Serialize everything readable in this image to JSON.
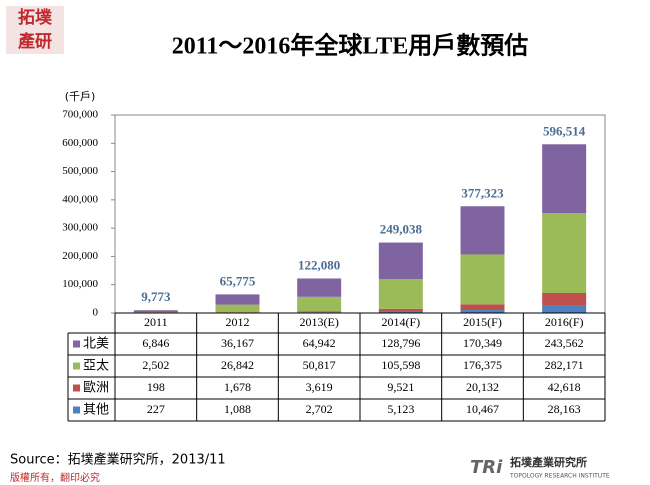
{
  "logo_text": [
    "拓墣",
    "產研"
  ],
  "brand": {
    "name": "拓墣產業研究所",
    "english": "TOPOLOGY RESEARCH INSTITUTE",
    "mark": "TRi"
  },
  "source": "Source：拓墣產業研究所，2013/11",
  "copyright": "版權所有，翻印必究",
  "chart_data": {
    "type": "stacked_bar",
    "title": "2011～2016年全球LTE用戶數預估",
    "y_label": "(千戶)",
    "categories": [
      "2011",
      "2012",
      "2013(E)",
      "2014(F)",
      "2015(F)",
      "2016(F)"
    ],
    "series": [
      {
        "name": "北美",
        "color": "#8064a2",
        "values": [
          6846,
          36167,
          64942,
          128796,
          170349,
          243562
        ],
        "value_labels": [
          "6,846",
          "36,167",
          "64,942",
          "128,796",
          "170,349",
          "243,562"
        ]
      },
      {
        "name": "亞太",
        "color": "#9bbb59",
        "values": [
          2502,
          26842,
          50817,
          105598,
          176375,
          282171
        ],
        "value_labels": [
          "2,502",
          "26,842",
          "50,817",
          "105,598",
          "176,375",
          "282,171"
        ]
      },
      {
        "name": "歐洲",
        "color": "#c0504d",
        "values": [
          198,
          1678,
          3619,
          9521,
          20132,
          42618
        ],
        "value_labels": [
          "198",
          "1,678",
          "3,619",
          "9,521",
          "20,132",
          "42,618"
        ]
      },
      {
        "name": "其他",
        "color": "#4f81bd",
        "values": [
          227,
          1088,
          2702,
          5123,
          10467,
          28163
        ],
        "value_labels": [
          "227",
          "1,088",
          "2,702",
          "5,123",
          "10,467",
          "28,163"
        ]
      }
    ],
    "totals": [
      9773,
      65775,
      122080,
      249038,
      377323,
      596514
    ],
    "total_labels": [
      "9,773",
      "65,775",
      "122,080",
      "249,038",
      "377,323",
      "596,514"
    ],
    "ylim": [
      0,
      700000
    ],
    "yticks": [
      0,
      {
        "value": 100000,
        "label": "100,000"
      },
      {
        "value": 200000,
        "label": "200,000"
      },
      {
        "value": 300000,
        "label": "300,000"
      },
      {
        "value": 400000,
        "label": "400,000"
      },
      {
        "value": 500000,
        "label": "500,000"
      },
      {
        "value": 600000,
        "label": "600,000"
      },
      {
        "value": 700000,
        "label": "700,000"
      }
    ],
    "grid": false
  }
}
